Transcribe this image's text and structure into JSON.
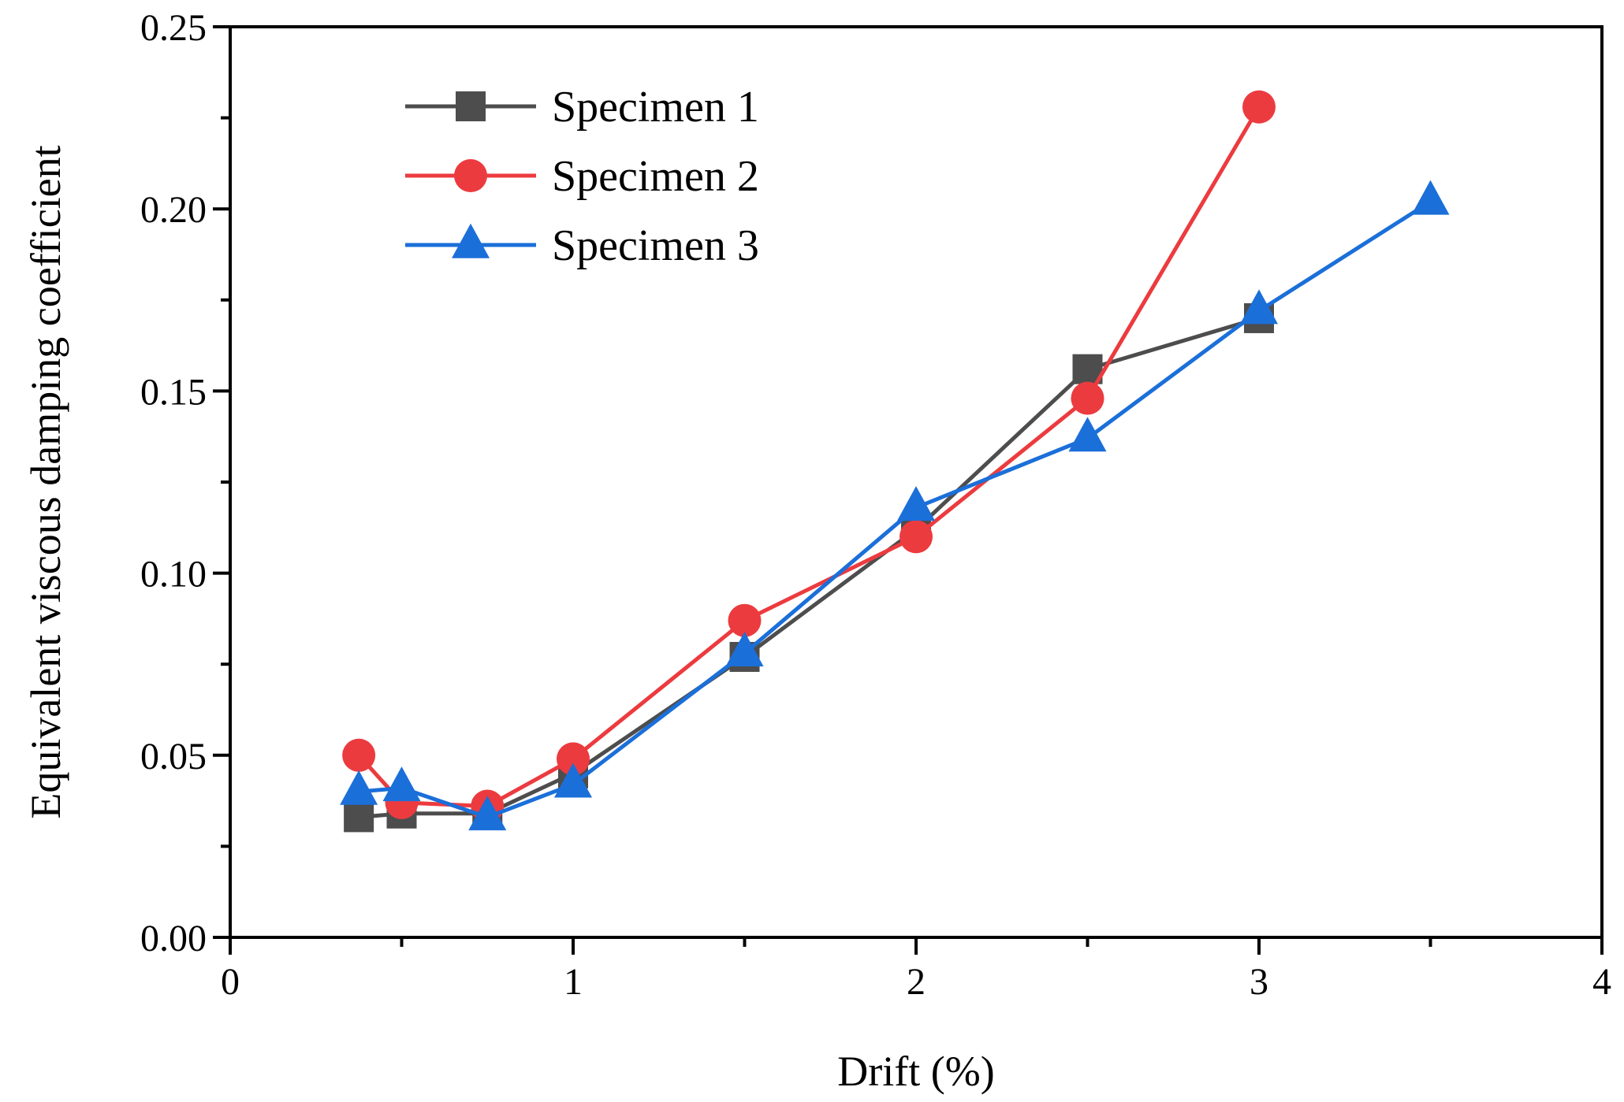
{
  "chart_data": {
    "type": "line",
    "title": "",
    "xlabel": "Drift (%)",
    "ylabel": "Equivalent viscous damping coefficient",
    "xlim": [
      0,
      4
    ],
    "ylim": [
      0,
      0.25
    ],
    "xticks": [
      0,
      1,
      2,
      3,
      4
    ],
    "xtick_labels": [
      "0",
      "1",
      "2",
      "3",
      "4"
    ],
    "yticks": [
      0,
      0.05,
      0.1,
      0.15,
      0.2,
      0.25
    ],
    "ytick_labels": [
      "0.00",
      "0.05",
      "0.10",
      "0.15",
      "0.20",
      "0.25"
    ],
    "legend_position": "top-left",
    "series": [
      {
        "name": "Specimen 1",
        "color": "#4d4d4d",
        "marker": "square",
        "x": [
          0.375,
          0.5,
          0.75,
          1.0,
          1.5,
          2.0,
          2.5,
          3.0
        ],
        "y": [
          0.033,
          0.034,
          0.034,
          0.045,
          0.077,
          0.112,
          0.156,
          0.17
        ]
      },
      {
        "name": "Specimen 2",
        "color": "#ec3b3f",
        "marker": "circle",
        "x": [
          0.375,
          0.5,
          0.75,
          1.0,
          1.5,
          2.0,
          2.5,
          3.0
        ],
        "y": [
          0.05,
          0.037,
          0.036,
          0.049,
          0.087,
          0.11,
          0.148,
          0.228
        ]
      },
      {
        "name": "Specimen 3",
        "color": "#1b6fd9",
        "marker": "triangle",
        "x": [
          0.375,
          0.5,
          0.75,
          1.0,
          1.5,
          2.0,
          2.5,
          3.0,
          3.5
        ],
        "y": [
          0.04,
          0.041,
          0.033,
          0.042,
          0.078,
          0.118,
          0.137,
          0.172,
          0.202
        ]
      }
    ]
  }
}
